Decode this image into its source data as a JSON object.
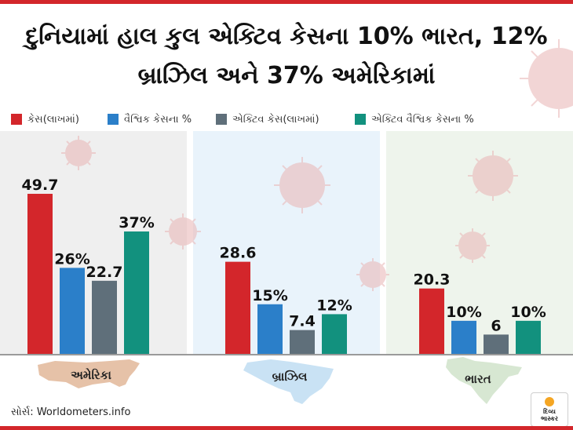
{
  "header": {
    "title_line1": "દુનિયામાં હાલ કુલ એક્ટિવ કેસના 10% ભારત, 12%",
    "title_line2": "બ્રાઝિલ અને 37% અમેરિકામાં"
  },
  "legend": [
    {
      "label": "કેસ(લાખમાં)",
      "color": "#d3262b"
    },
    {
      "label": "વૈશ્વિક કેસના %",
      "color": "#2b7fc9"
    },
    {
      "label": "એક્ટિવ કેસ(લાખમાં)",
      "color": "#5f6f7a"
    },
    {
      "label": "એક્ટિવ વૈશ્વિક કેસના %",
      "color": "#12917e"
    }
  ],
  "chart_data": {
    "type": "bar",
    "categories": [
      "અમેરિકા",
      "બ્રાઝિલ",
      "ભારત"
    ],
    "series": [
      {
        "name": "કેસ(લાખમાં)",
        "values": [
          49.7,
          28.6,
          20.3
        ],
        "labels": [
          "49.7",
          "28.6",
          "20.3"
        ],
        "color": "#d3262b"
      },
      {
        "name": "વૈશ્વિક કેસના %",
        "values": [
          26,
          15,
          10
        ],
        "labels": [
          "26%",
          "15%",
          "10%"
        ],
        "color": "#2b7fc9"
      },
      {
        "name": "એક્ટિવ કેસ(લાખમાં)",
        "values": [
          22.7,
          7.4,
          6
        ],
        "labels": [
          "22.7",
          "7.4",
          "6"
        ],
        "color": "#5f6f7a"
      },
      {
        "name": "એક્ટિવ વૈશ્વિક કેસના %",
        "values": [
          37,
          12,
          10
        ],
        "labels": [
          "37%",
          "12%",
          "10%"
        ],
        "color": "#12917e"
      }
    ],
    "title": "",
    "xlabel": "",
    "ylabel": "",
    "grid": false,
    "legend_position": "top"
  },
  "footer": {
    "source": "સોર્સ: Worldometers.info",
    "logo_line1": "દિવ્ય",
    "logo_line2": "ભાસ્કર"
  }
}
